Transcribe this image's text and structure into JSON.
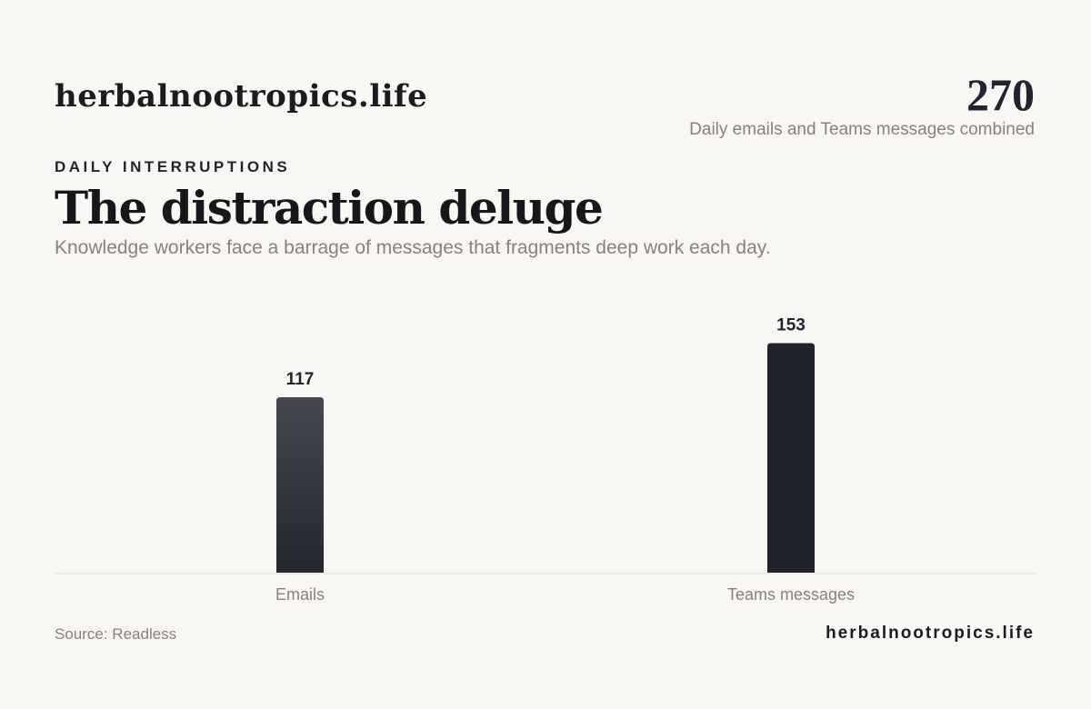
{
  "header": {
    "brand": "herbalnootropics.life"
  },
  "stat": {
    "number": "270",
    "caption": "Daily emails and Teams messages combined"
  },
  "eyebrow": "DAILY INTERRUPTIONS",
  "headline": "The distraction deluge",
  "subheadline": "Knowledge workers face a barrage of messages that fragments deep work each day.",
  "chart_data": {
    "type": "bar",
    "categories": [
      "Emails",
      "Teams messages"
    ],
    "values": [
      117,
      153
    ],
    "title": "",
    "xlabel": "",
    "ylabel": "",
    "ylim": [
      0,
      200
    ],
    "grid": false,
    "colors": [
      "#3e414c",
      "#20232e"
    ]
  },
  "footer": {
    "source": "Source: Readless",
    "brand": "herbalnootropics.life"
  }
}
